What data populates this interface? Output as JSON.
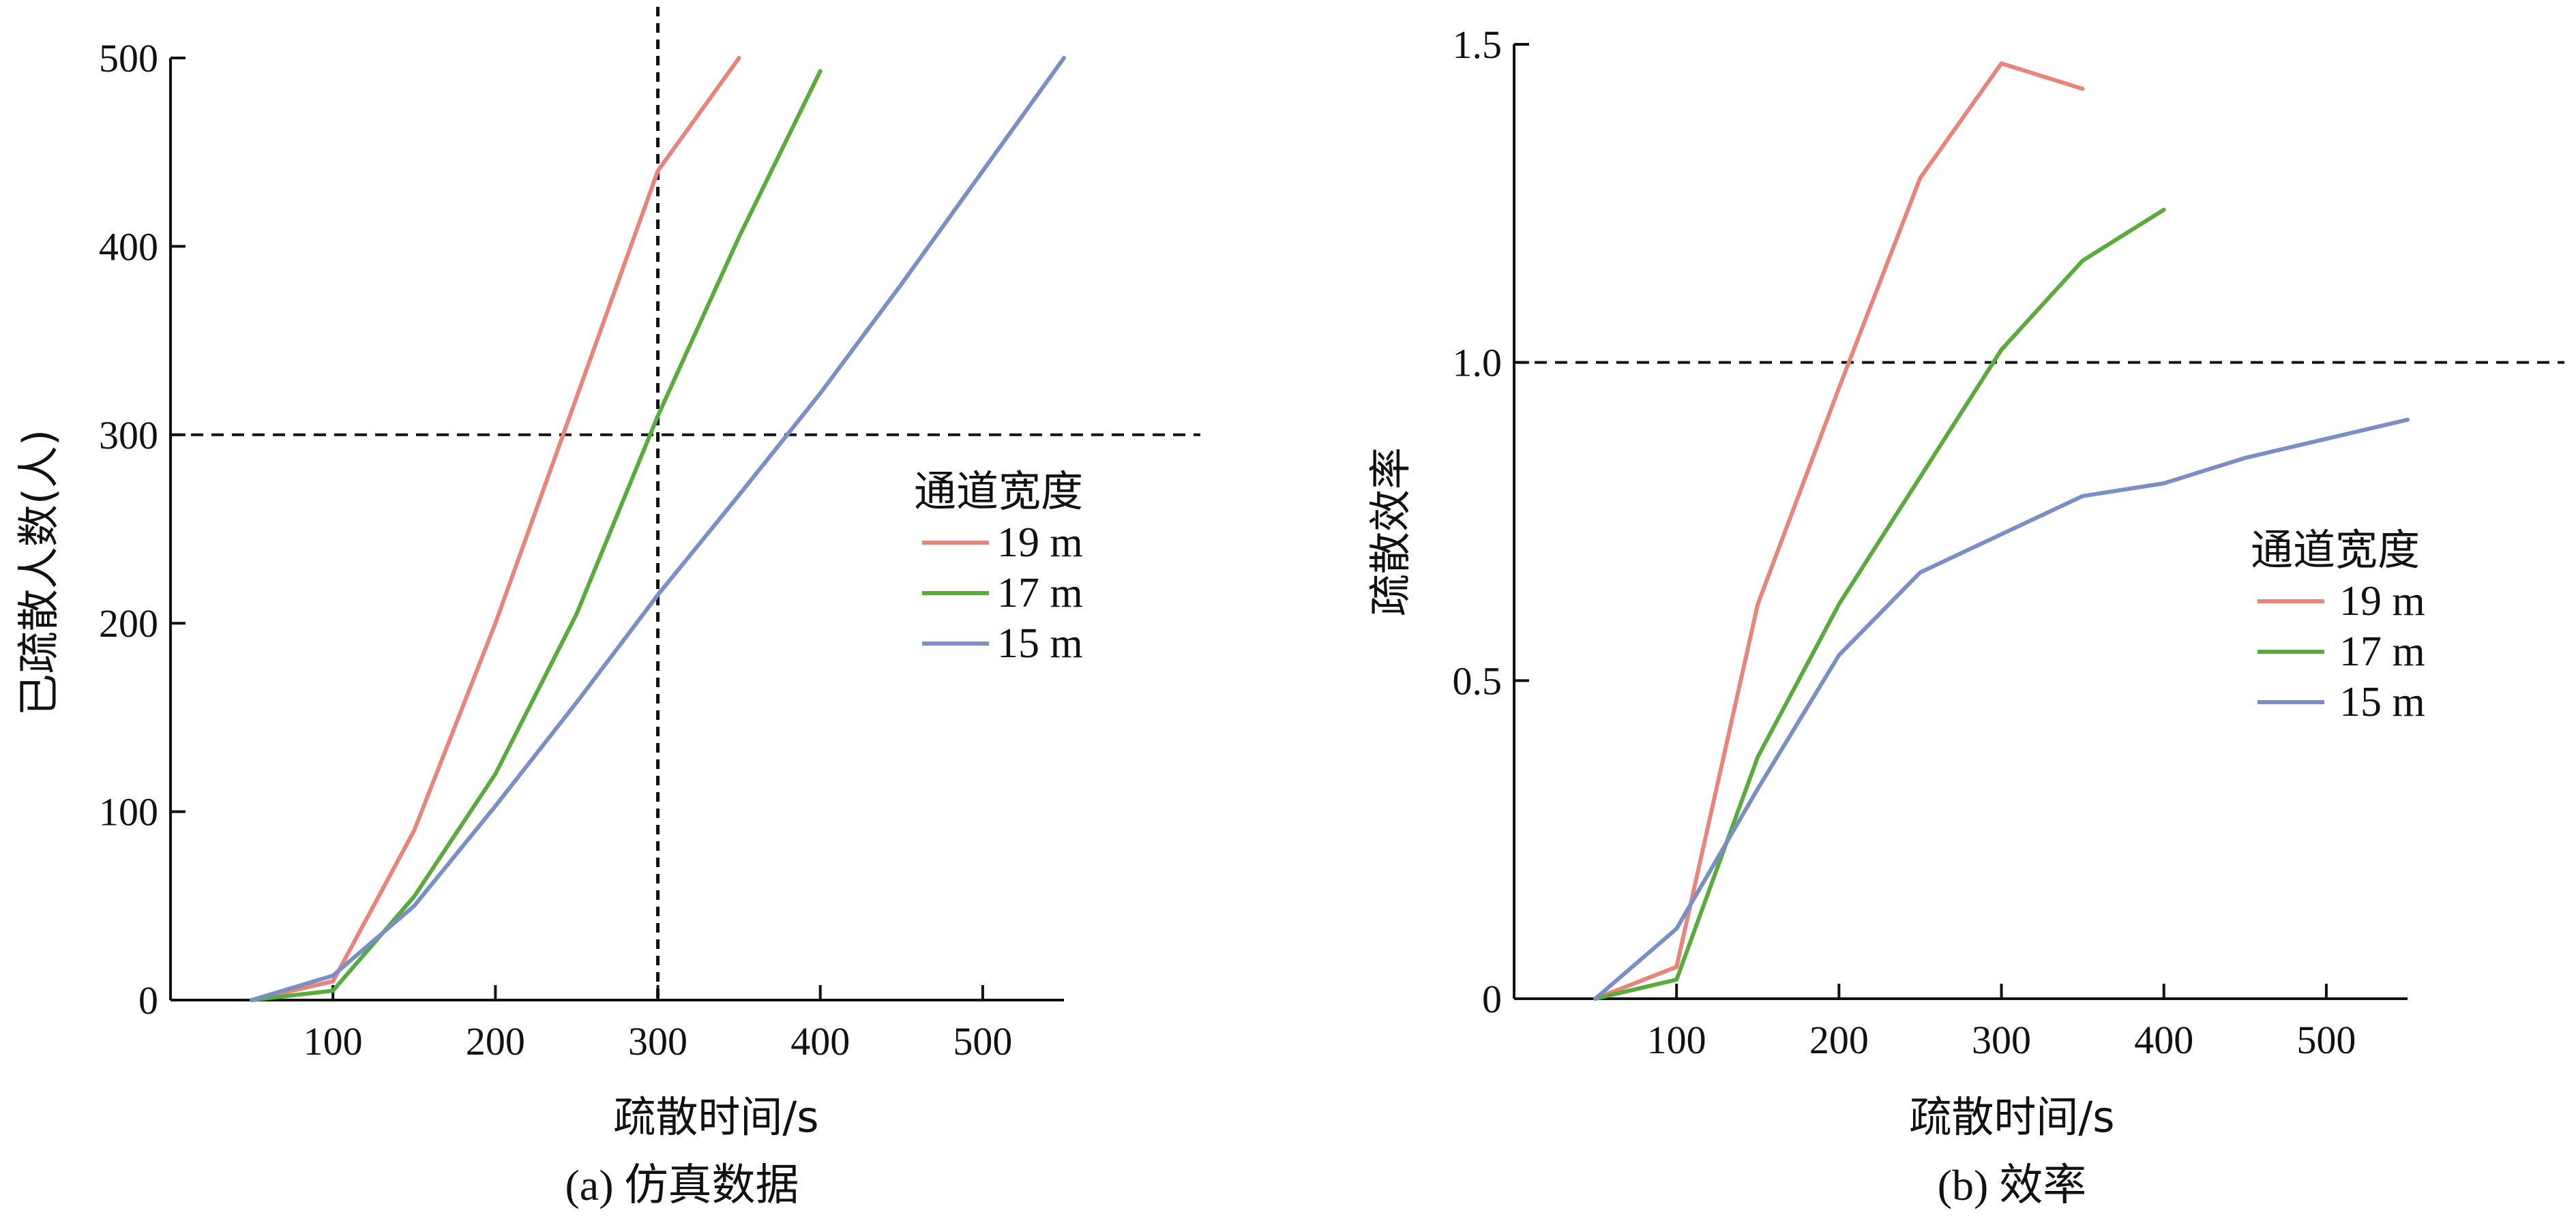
{
  "colors": {
    "19m": "#e8857a",
    "17m": "#5aab3e",
    "15m": "#7b8fc7",
    "axis": "#111111"
  },
  "chart_data": [
    {
      "type": "line",
      "caption": "(a) 仿真数据",
      "xlabel": "疏散时间/s",
      "ylabel": "已疏散人数(人)",
      "xlim": [
        0,
        550
      ],
      "ylim": [
        0,
        500
      ],
      "xticks": [
        100,
        200,
        300,
        400,
        500
      ],
      "yticks": [
        0,
        100,
        200,
        300,
        400,
        500
      ],
      "x_tick_labels": [
        "100",
        "200",
        "300",
        "400",
        "500"
      ],
      "y_tick_labels": [
        "0",
        "100",
        "200",
        "300",
        "400",
        "500"
      ],
      "reference_lines": [
        {
          "axis": "y",
          "value": 300
        },
        {
          "axis": "x",
          "value": 300
        }
      ],
      "legend": {
        "title": "通道宽度",
        "position": "right"
      },
      "series": [
        {
          "name": "19 m",
          "color": "#e8857a",
          "x": [
            50,
            100,
            150,
            200,
            250,
            275,
            300,
            350
          ],
          "y": [
            0,
            10,
            90,
            200,
            320,
            380,
            440,
            500
          ]
        },
        {
          "name": "17 m",
          "color": "#5aab3e",
          "x": [
            50,
            100,
            150,
            200,
            250,
            300,
            350,
            400
          ],
          "y": [
            0,
            5,
            55,
            120,
            205,
            310,
            405,
            493
          ]
        },
        {
          "name": "15 m",
          "color": "#7b8fc7",
          "x": [
            50,
            100,
            150,
            200,
            250,
            300,
            350,
            400,
            450,
            500,
            550
          ],
          "y": [
            0,
            13,
            50,
            103,
            158,
            215,
            268,
            322,
            380,
            440,
            500
          ]
        }
      ]
    },
    {
      "type": "line",
      "caption": "(b) 效率",
      "xlabel": "疏散时间/s",
      "ylabel": "疏散效率",
      "xlim": [
        0,
        550
      ],
      "ylim": [
        0,
        1.5
      ],
      "xticks": [
        100,
        200,
        300,
        400,
        500
      ],
      "yticks": [
        0,
        0.5,
        1.0,
        1.5
      ],
      "x_tick_labels": [
        "100",
        "200",
        "300",
        "400",
        "500"
      ],
      "y_tick_labels": [
        "0",
        "0.5",
        "1.0",
        "1.5"
      ],
      "reference_lines": [
        {
          "axis": "y",
          "value": 1.0
        }
      ],
      "legend": {
        "title": "通道宽度",
        "position": "right"
      },
      "series": [
        {
          "name": "19 m",
          "color": "#e8857a",
          "x": [
            50,
            100,
            150,
            200,
            250,
            300,
            350
          ],
          "y": [
            0,
            0.05,
            0.62,
            0.96,
            1.29,
            1.47,
            1.43
          ]
        },
        {
          "name": "17 m",
          "color": "#5aab3e",
          "x": [
            50,
            100,
            150,
            200,
            250,
            300,
            350,
            400
          ],
          "y": [
            0,
            0.03,
            0.38,
            0.62,
            0.82,
            1.02,
            1.16,
            1.24
          ]
        },
        {
          "name": "15 m",
          "color": "#7b8fc7",
          "x": [
            50,
            100,
            150,
            200,
            250,
            300,
            350,
            400,
            450,
            500,
            550
          ],
          "y": [
            0,
            0.11,
            0.33,
            0.54,
            0.67,
            0.73,
            0.79,
            0.81,
            0.85,
            0.88,
            0.91
          ]
        }
      ]
    }
  ]
}
